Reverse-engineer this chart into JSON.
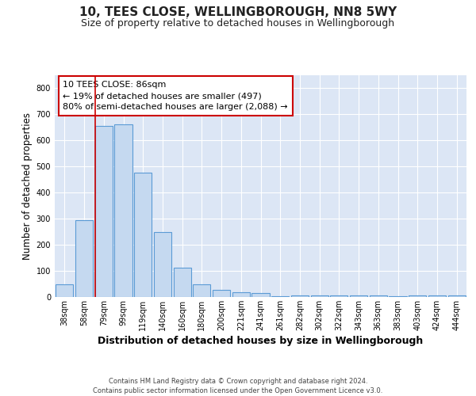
{
  "title1": "10, TEES CLOSE, WELLINGBOROUGH, NN8 5WY",
  "title2": "Size of property relative to detached houses in Wellingborough",
  "xlabel": "Distribution of detached houses by size in Wellingborough",
  "ylabel": "Number of detached properties",
  "categories": [
    "38sqm",
    "58sqm",
    "79sqm",
    "99sqm",
    "119sqm",
    "140sqm",
    "160sqm",
    "180sqm",
    "200sqm",
    "221sqm",
    "241sqm",
    "261sqm",
    "282sqm",
    "302sqm",
    "322sqm",
    "343sqm",
    "363sqm",
    "383sqm",
    "403sqm",
    "424sqm",
    "444sqm"
  ],
  "values": [
    48,
    293,
    657,
    663,
    477,
    250,
    113,
    48,
    28,
    17,
    14,
    4,
    7,
    7,
    7,
    7,
    7,
    2,
    7,
    7,
    7
  ],
  "bar_color": "#c5d9f0",
  "bar_edge_color": "#5b9bd5",
  "vline_color": "#cc0000",
  "vline_x_index": 2,
  "annotation_text": "10 TEES CLOSE: 86sqm\n← 19% of detached houses are smaller (497)\n80% of semi-detached houses are larger (2,088) →",
  "annotation_box_color": "#ffffff",
  "annotation_box_edge": "#cc0000",
  "ylim": [
    0,
    850
  ],
  "yticks": [
    0,
    100,
    200,
    300,
    400,
    500,
    600,
    700,
    800
  ],
  "footer": "Contains HM Land Registry data © Crown copyright and database right 2024.\nContains public sector information licensed under the Open Government Licence v3.0.",
  "fig_bg_color": "#ffffff",
  "plot_bg_color": "#dce6f5",
  "grid_color": "#ffffff",
  "title1_fontsize": 11,
  "title2_fontsize": 9,
  "xlabel_fontsize": 9,
  "ylabel_fontsize": 8.5,
  "tick_fontsize": 7,
  "annotation_fontsize": 8,
  "footer_fontsize": 6
}
